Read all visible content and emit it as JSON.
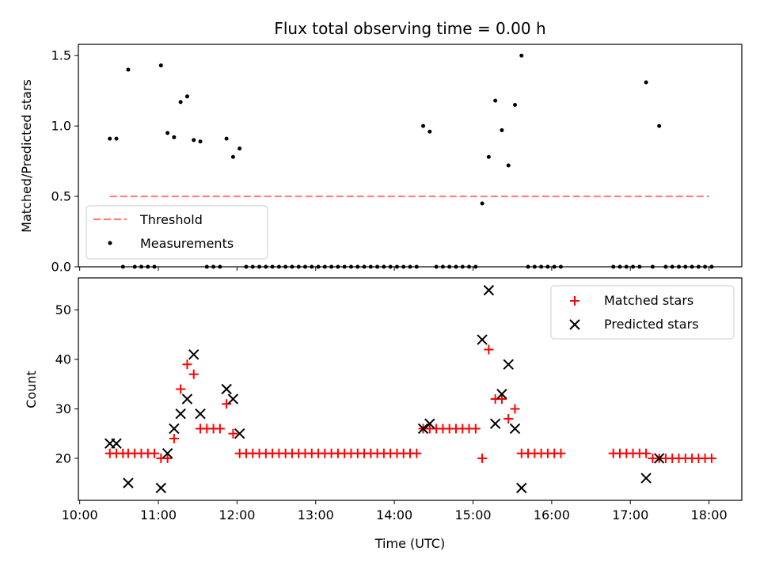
{
  "chart_data": [
    {
      "type": "scatter",
      "title": "Flux total observing time = 0.00 h",
      "xlabel": "",
      "ylabel": "Matched/Predicted stars",
      "ylim": [
        0,
        1.58
      ],
      "yticks": [
        "0.0",
        "0.5",
        "1.0",
        "1.5"
      ],
      "legend_position": "lower-left",
      "threshold": {
        "name": "Threshold",
        "y": 0.5,
        "x_start": "10:23",
        "x_end": "18:00",
        "color": "#ff7f7f"
      },
      "series": [
        {
          "name": "Measurements",
          "color": "#000000",
          "points": [
            [
              "10:23",
              0.91
            ],
            [
              "10:28",
              0.91
            ],
            [
              "10:33",
              0
            ],
            [
              "10:37",
              1.4
            ],
            [
              "10:42",
              0
            ],
            [
              "10:47",
              0
            ],
            [
              "10:52",
              0
            ],
            [
              "10:57",
              0
            ],
            [
              "11:02",
              1.43
            ],
            [
              "11:07",
              0.95
            ],
            [
              "11:12",
              0.92
            ],
            [
              "11:17",
              1.17
            ],
            [
              "11:22",
              1.21
            ],
            [
              "11:27",
              0.9
            ],
            [
              "11:32",
              0.89
            ],
            [
              "11:37",
              0
            ],
            [
              "11:42",
              0
            ],
            [
              "11:47",
              0
            ],
            [
              "11:52",
              0.91
            ],
            [
              "11:57",
              0.78
            ],
            [
              "12:02",
              0.84
            ],
            [
              "12:07",
              0
            ],
            [
              "12:12",
              0
            ],
            [
              "12:17",
              0
            ],
            [
              "12:22",
              0
            ],
            [
              "12:27",
              0
            ],
            [
              "12:32",
              0
            ],
            [
              "12:37",
              0
            ],
            [
              "12:42",
              0
            ],
            [
              "12:47",
              0
            ],
            [
              "12:52",
              0
            ],
            [
              "12:57",
              0
            ],
            [
              "13:02",
              0
            ],
            [
              "13:07",
              0
            ],
            [
              "13:12",
              0
            ],
            [
              "13:17",
              0
            ],
            [
              "13:22",
              0
            ],
            [
              "13:27",
              0
            ],
            [
              "13:32",
              0
            ],
            [
              "13:37",
              0
            ],
            [
              "13:42",
              0
            ],
            [
              "13:47",
              0
            ],
            [
              "13:52",
              0
            ],
            [
              "13:57",
              0
            ],
            [
              "14:02",
              0
            ],
            [
              "14:07",
              0
            ],
            [
              "14:12",
              0
            ],
            [
              "14:17",
              0
            ],
            [
              "14:22",
              1.0
            ],
            [
              "14:27",
              0.96
            ],
            [
              "14:32",
              0
            ],
            [
              "14:37",
              0
            ],
            [
              "14:42",
              0
            ],
            [
              "14:47",
              0
            ],
            [
              "14:52",
              0
            ],
            [
              "14:57",
              0
            ],
            [
              "15:02",
              0
            ],
            [
              "15:07",
              0.45
            ],
            [
              "15:12",
              0.78
            ],
            [
              "15:17",
              1.18
            ],
            [
              "15:22",
              0.97
            ],
            [
              "15:27",
              0.72
            ],
            [
              "15:32",
              1.15
            ],
            [
              "15:37",
              1.5
            ],
            [
              "15:42",
              0
            ],
            [
              "15:47",
              0
            ],
            [
              "15:52",
              0
            ],
            [
              "15:57",
              0
            ],
            [
              "16:02",
              0
            ],
            [
              "16:07",
              0
            ],
            [
              "16:47",
              0
            ],
            [
              "16:52",
              0
            ],
            [
              "16:57",
              0
            ],
            [
              "17:02",
              0
            ],
            [
              "17:07",
              0
            ],
            [
              "17:12",
              1.31
            ],
            [
              "17:17",
              0
            ],
            [
              "17:22",
              1.0
            ],
            [
              "17:27",
              0
            ],
            [
              "17:32",
              0
            ],
            [
              "17:37",
              0
            ],
            [
              "17:42",
              0
            ],
            [
              "17:47",
              0
            ],
            [
              "17:52",
              0
            ],
            [
              "17:57",
              0
            ],
            [
              "18:02",
              0
            ]
          ]
        }
      ]
    },
    {
      "type": "scatter",
      "title": "",
      "xlabel": "Time (UTC)",
      "ylabel": "Count",
      "ylim": [
        11.5,
        56.5
      ],
      "yticks": [
        "20",
        "30",
        "40",
        "50"
      ],
      "xlim": [
        "09:59",
        "18:25"
      ],
      "xticks": [
        "10:00",
        "11:00",
        "12:00",
        "13:00",
        "14:00",
        "15:00",
        "16:00",
        "17:00",
        "18:00"
      ],
      "legend_position": "upper-right",
      "series": [
        {
          "name": "Matched stars",
          "marker": "plus",
          "color": "#ff0000",
          "points": [
            [
              "10:23",
              21
            ],
            [
              "10:28",
              21
            ],
            [
              "10:33",
              21
            ],
            [
              "10:37",
              21
            ],
            [
              "10:42",
              21
            ],
            [
              "10:47",
              21
            ],
            [
              "10:52",
              21
            ],
            [
              "10:57",
              21
            ],
            [
              "11:02",
              20
            ],
            [
              "11:07",
              20
            ],
            [
              "11:12",
              24
            ],
            [
              "11:17",
              34
            ],
            [
              "11:22",
              39
            ],
            [
              "11:27",
              37
            ],
            [
              "11:32",
              26
            ],
            [
              "11:37",
              26
            ],
            [
              "11:42",
              26
            ],
            [
              "11:47",
              26
            ],
            [
              "11:52",
              31
            ],
            [
              "11:57",
              25
            ],
            [
              "12:02",
              21
            ],
            [
              "12:07",
              21
            ],
            [
              "12:12",
              21
            ],
            [
              "12:17",
              21
            ],
            [
              "12:22",
              21
            ],
            [
              "12:27",
              21
            ],
            [
              "12:32",
              21
            ],
            [
              "12:37",
              21
            ],
            [
              "12:42",
              21
            ],
            [
              "12:47",
              21
            ],
            [
              "12:52",
              21
            ],
            [
              "12:57",
              21
            ],
            [
              "13:02",
              21
            ],
            [
              "13:07",
              21
            ],
            [
              "13:12",
              21
            ],
            [
              "13:17",
              21
            ],
            [
              "13:22",
              21
            ],
            [
              "13:27",
              21
            ],
            [
              "13:32",
              21
            ],
            [
              "13:37",
              21
            ],
            [
              "13:42",
              21
            ],
            [
              "13:47",
              21
            ],
            [
              "13:52",
              21
            ],
            [
              "13:57",
              21
            ],
            [
              "14:02",
              21
            ],
            [
              "14:07",
              21
            ],
            [
              "14:12",
              21
            ],
            [
              "14:17",
              21
            ],
            [
              "14:22",
              26
            ],
            [
              "14:27",
              26
            ],
            [
              "14:32",
              26
            ],
            [
              "14:37",
              26
            ],
            [
              "14:42",
              26
            ],
            [
              "14:47",
              26
            ],
            [
              "14:52",
              26
            ],
            [
              "14:57",
              26
            ],
            [
              "15:02",
              26
            ],
            [
              "15:07",
              20
            ],
            [
              "15:12",
              42
            ],
            [
              "15:17",
              32
            ],
            [
              "15:22",
              32
            ],
            [
              "15:27",
              28
            ],
            [
              "15:32",
              30
            ],
            [
              "15:37",
              21
            ],
            [
              "15:42",
              21
            ],
            [
              "15:47",
              21
            ],
            [
              "15:52",
              21
            ],
            [
              "15:57",
              21
            ],
            [
              "16:02",
              21
            ],
            [
              "16:07",
              21
            ],
            [
              "16:47",
              21
            ],
            [
              "16:52",
              21
            ],
            [
              "16:57",
              21
            ],
            [
              "17:02",
              21
            ],
            [
              "17:07",
              21
            ],
            [
              "17:12",
              21
            ],
            [
              "17:17",
              20
            ],
            [
              "17:22",
              20
            ],
            [
              "17:27",
              20
            ],
            [
              "17:32",
              20
            ],
            [
              "17:37",
              20
            ],
            [
              "17:42",
              20
            ],
            [
              "17:47",
              20
            ],
            [
              "17:52",
              20
            ],
            [
              "17:57",
              20
            ],
            [
              "18:02",
              20
            ]
          ]
        },
        {
          "name": "Predicted stars",
          "marker": "x",
          "color": "#000000",
          "points": [
            [
              "10:23",
              23
            ],
            [
              "10:28",
              23
            ],
            [
              "10:37",
              15
            ],
            [
              "11:02",
              14
            ],
            [
              "11:07",
              21
            ],
            [
              "11:12",
              26
            ],
            [
              "11:17",
              29
            ],
            [
              "11:22",
              32
            ],
            [
              "11:27",
              41
            ],
            [
              "11:32",
              29
            ],
            [
              "11:52",
              34
            ],
            [
              "11:57",
              32
            ],
            [
              "12:02",
              25
            ],
            [
              "14:22",
              26
            ],
            [
              "14:27",
              27
            ],
            [
              "15:07",
              44
            ],
            [
              "15:12",
              54
            ],
            [
              "15:17",
              27
            ],
            [
              "15:22",
              33
            ],
            [
              "15:27",
              39
            ],
            [
              "15:32",
              26
            ],
            [
              "15:37",
              14
            ],
            [
              "17:12",
              16
            ],
            [
              "17:22",
              20
            ]
          ]
        }
      ]
    }
  ]
}
